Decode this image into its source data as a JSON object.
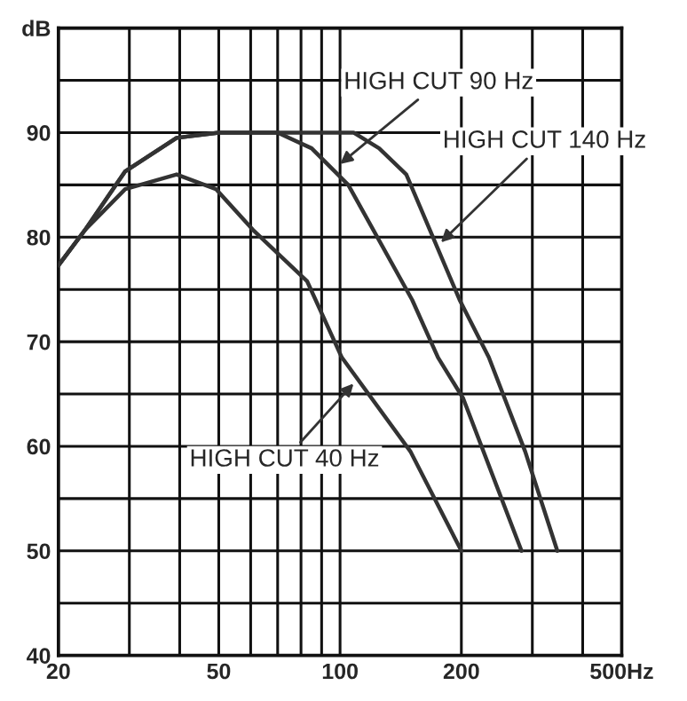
{
  "chart_data": {
    "type": "line",
    "log": "x",
    "grid": true,
    "legend": false,
    "marker": "none",
    "line_style": "solid",
    "xlim": [
      20,
      500
    ],
    "ylim": [
      40,
      100
    ],
    "xticks": [
      20,
      {
        "value": 30,
        "label": null
      },
      {
        "value": 40,
        "label": null
      },
      50,
      {
        "value": 60,
        "label": null
      },
      {
        "value": 70,
        "label": null
      },
      {
        "value": 80,
        "label": null
      },
      {
        "value": 90,
        "label": null
      },
      100,
      200,
      {
        "value": 300,
        "label": null
      },
      {
        "value": 400,
        "label": null
      },
      {
        "value": 500,
        "label": "500Hz"
      }
    ],
    "yticks": [
      40,
      {
        "value": 45,
        "label": null
      },
      50,
      {
        "value": 55,
        "label": null
      },
      60,
      {
        "value": 65,
        "label": null
      },
      70,
      {
        "value": 75,
        "label": null
      },
      80,
      {
        "value": 85,
        "label": null
      },
      90,
      {
        "value": 95,
        "label": null
      },
      {
        "value": 100,
        "label": "dB"
      }
    ],
    "series": [
      {
        "color": "#333333",
        "x": [
          20,
          23.3,
          29.3,
          39.3,
          49.2,
          60.8,
          82.8,
          101,
          149.5,
          200
        ],
        "values": [
          77.3,
          80.7,
          84.6,
          86,
          84.6,
          80.7,
          75.8,
          68.5,
          59.5,
          50
        ]
      },
      {
        "color": "#333333",
        "x": [
          20,
          23.3,
          29.3,
          39.3,
          50,
          70,
          85,
          104.8,
          151,
          175,
          202,
          282
        ],
        "values": [
          77.3,
          80.7,
          86.3,
          89.5,
          90,
          90,
          88.5,
          85,
          74,
          68.5,
          64.6,
          50
        ]
      },
      {
        "color": "#333333",
        "x": [
          20,
          23.3,
          29.3,
          39.3,
          50,
          108,
          125,
          146,
          198,
          234,
          288,
          346
        ],
        "values": [
          77.3,
          80.7,
          86.3,
          89.5,
          90,
          90,
          88.5,
          86,
          74,
          68.5,
          59.5,
          50
        ]
      }
    ],
    "annotations": [
      {
        "text": "HIGH CUT 90 Hz",
        "x": 100,
        "y": 87
      },
      {
        "text": "HIGH CUT 140 Hz",
        "x": 178,
        "y": 79.5
      },
      {
        "text": "HIGH CUT 40 Hz",
        "x": 108,
        "y": 66
      }
    ]
  }
}
